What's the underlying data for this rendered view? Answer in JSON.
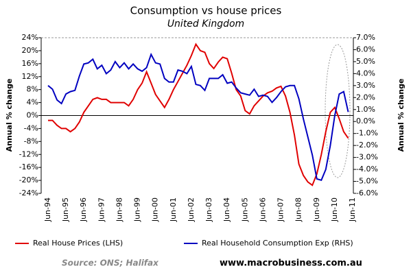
{
  "chart_data": {
    "type": "line",
    "title": "Consumption vs house prices",
    "subtitle": "United Kingdom",
    "y_label": "Annual % change",
    "y2_label": "Annual % change",
    "source": "Source: ONS; Halifax",
    "website": "www.macrobusiness.com.au",
    "categories": [
      "Jun-94",
      null,
      null,
      null,
      "Jun-95",
      null,
      null,
      null,
      "Jun-96",
      null,
      null,
      null,
      "Jun-97",
      null,
      null,
      null,
      "Jun-98",
      null,
      null,
      null,
      "Jun-99",
      null,
      null,
      null,
      "Jun-00",
      null,
      null,
      null,
      "Jun-01",
      null,
      null,
      null,
      "Jun-02",
      null,
      null,
      null,
      "Jun-03",
      null,
      null,
      null,
      "Jun-04",
      null,
      null,
      null,
      "Jun-05",
      null,
      null,
      null,
      "Jun-06",
      null,
      null,
      null,
      "Jun-07",
      null,
      null,
      null,
      "Jun-08",
      null,
      null,
      null,
      "Jun-09",
      null,
      null,
      null,
      "Jun-10",
      null,
      null,
      null,
      "Jun-11"
    ],
    "series": [
      {
        "name": "Real House Prices (LHS)",
        "color": "#e00000",
        "axis": "y",
        "values": [
          -1.5,
          -1.5,
          -3,
          -4,
          -4,
          -5,
          -4,
          -2,
          1,
          3,
          5,
          5.5,
          5,
          5,
          4,
          4,
          4,
          4,
          3,
          5,
          8,
          10,
          13.5,
          10,
          6.5,
          4.5,
          2.5,
          5,
          8,
          10.5,
          13,
          15.5,
          18.5,
          22,
          20,
          19.5,
          16,
          14.5,
          16.5,
          18,
          17.5,
          13,
          8,
          6,
          1.5,
          0.5,
          3,
          4.5,
          6,
          7,
          7.5,
          8.5,
          9,
          6,
          1,
          -6,
          -15,
          -18.5,
          -20.5,
          -21.5,
          -18,
          -12,
          -5,
          1,
          2.5,
          -1,
          -5,
          -7,
          null
        ]
      },
      {
        "name": "Real Household Consumption Exp (RHS)",
        "color": "#0000c0",
        "axis": "y2",
        "values": [
          3.0,
          2.7,
          1.8,
          1.5,
          2.3,
          2.5,
          2.6,
          3.8,
          4.8,
          4.9,
          5.2,
          4.4,
          4.7,
          4.0,
          4.3,
          5.0,
          4.5,
          4.9,
          4.4,
          4.8,
          4.4,
          4.2,
          4.5,
          5.6,
          4.9,
          4.8,
          3.6,
          3.3,
          3.3,
          4.3,
          4.2,
          4.0,
          4.6,
          3.1,
          3.0,
          2.6,
          3.6,
          3.6,
          3.6,
          3.9,
          3.2,
          3.3,
          2.8,
          2.4,
          2.3,
          2.2,
          2.7,
          2.1,
          2.2,
          2.1,
          1.6,
          2.0,
          2.5,
          2.9,
          3.0,
          3.0,
          1.9,
          0.2,
          -1.3,
          -2.8,
          -4.8,
          -4.9,
          -4.0,
          -2.0,
          0.5,
          2.3,
          2.5,
          0.8,
          null
        ]
      }
    ],
    "ylim": [
      -24,
      24
    ],
    "yticks": [
      {
        "value": -24,
        "label": "-24%"
      },
      {
        "value": -20,
        "label": "-20%"
      },
      {
        "value": -16,
        "label": "-16%"
      },
      {
        "value": -12,
        "label": "-12%"
      },
      {
        "value": -8,
        "label": "-8%"
      },
      {
        "value": -4,
        "label": "-4%"
      },
      {
        "value": 0,
        "label": "0%"
      },
      {
        "value": 4,
        "label": "4%"
      },
      {
        "value": 8,
        "label": "8%"
      },
      {
        "value": 12,
        "label": "12%"
      },
      {
        "value": 16,
        "label": "16%"
      },
      {
        "value": 20,
        "label": "20%"
      },
      {
        "value": 24,
        "label": "24%"
      }
    ],
    "y2lim": [
      -6,
      7
    ],
    "y2ticks": [
      {
        "value": -6,
        "label": "-6.0%"
      },
      {
        "value": -5,
        "label": "-5.0%"
      },
      {
        "value": -4,
        "label": "-4.0%"
      },
      {
        "value": -3,
        "label": "-3.0%"
      },
      {
        "value": -2,
        "label": "-2.0%"
      },
      {
        "value": -1,
        "label": "-1.0%"
      },
      {
        "value": 0,
        "label": "0.0%"
      },
      {
        "value": 1,
        "label": "1.0%"
      },
      {
        "value": 2,
        "label": "2.0%"
      },
      {
        "value": 3,
        "label": "3.0%"
      },
      {
        "value": 4,
        "label": "4.0%"
      },
      {
        "value": 5,
        "label": "5.0%"
      },
      {
        "value": 6,
        "label": "6.0%"
      },
      {
        "value": 7,
        "label": "7.0%"
      }
    ],
    "grid": false
  }
}
